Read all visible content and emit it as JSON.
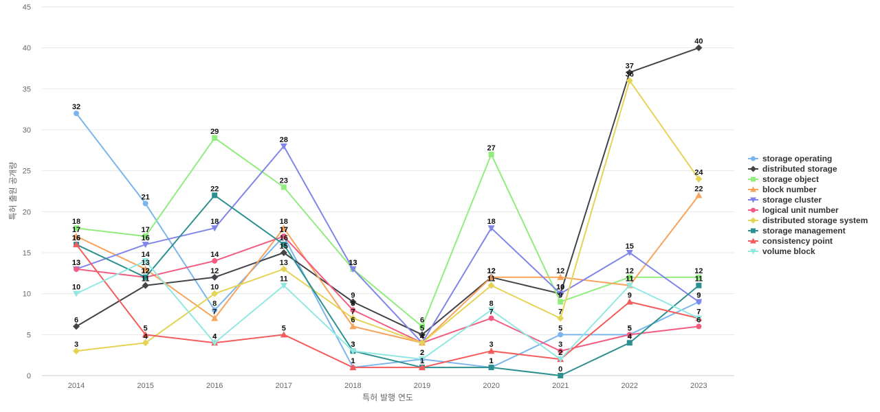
{
  "chart_data": {
    "type": "line",
    "title": "",
    "xlabel": "특허 발행 연도",
    "ylabel": "특허 출원 공개량",
    "ylim": [
      0,
      45
    ],
    "yticks": [
      0,
      5,
      10,
      15,
      20,
      25,
      30,
      35,
      40,
      45
    ],
    "grid": true,
    "legend_position": "right",
    "categories": [
      "2014",
      "2015",
      "2016",
      "2017",
      "2018",
      "2019",
      "2020",
      "2021",
      "2022",
      "2023"
    ],
    "series": [
      {
        "name": "storage operating",
        "color": "#7cb5ec",
        "marker": "circle",
        "values": [
          32,
          21,
          8,
          17,
          1,
          2,
          1,
          5,
          5,
          9
        ]
      },
      {
        "name": "distributed storage",
        "color": "#434348",
        "marker": "diamond",
        "values": [
          6,
          11,
          12,
          15,
          9,
          5,
          12,
          10,
          37,
          40
        ]
      },
      {
        "name": "storage object",
        "color": "#90ed7d",
        "marker": "square",
        "values": [
          18,
          17,
          29,
          23,
          13,
          6,
          27,
          9,
          12,
          12
        ]
      },
      {
        "name": "block number",
        "color": "#f7a35c",
        "marker": "triangle",
        "values": [
          17,
          13,
          7,
          18,
          6,
          4,
          12,
          12,
          11,
          22
        ]
      },
      {
        "name": "storage cluster",
        "color": "#8085e9",
        "marker": "triangle-down",
        "values": [
          13,
          16,
          18,
          28,
          13,
          4,
          18,
          10,
          15,
          9
        ]
      },
      {
        "name": "logical unit number",
        "color": "#f15c80",
        "marker": "circle",
        "values": [
          13,
          12,
          14,
          17,
          8,
          4,
          7,
          3,
          5,
          6
        ]
      },
      {
        "name": "distributed storage system",
        "color": "#e4d354",
        "marker": "diamond",
        "values": [
          3,
          4,
          10,
          13,
          7,
          4,
          11,
          7,
          36,
          24
        ]
      },
      {
        "name": "storage management",
        "color": "#2b908f",
        "marker": "square",
        "values": [
          16,
          12,
          22,
          16,
          3,
          1,
          1,
          0,
          4,
          11
        ]
      },
      {
        "name": "consistency point",
        "color": "#f45b5b",
        "marker": "triangle",
        "values": [
          16,
          5,
          4,
          5,
          1,
          1,
          3,
          2,
          9,
          7
        ]
      },
      {
        "name": "volume block",
        "color": "#91e8e1",
        "marker": "triangle-down",
        "values": [
          10,
          14,
          4,
          11,
          3,
          2,
          8,
          2,
          11,
          7
        ]
      }
    ]
  }
}
